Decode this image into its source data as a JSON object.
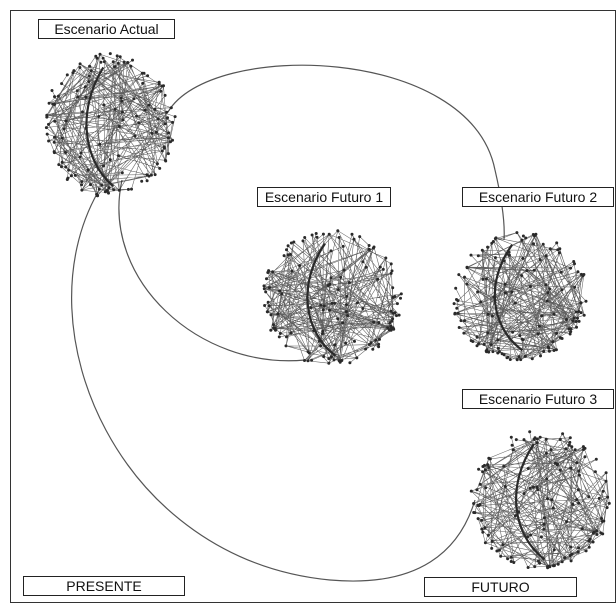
{
  "labels": {
    "current": "Escenario Actual",
    "future1": "Escenario Futuro 1",
    "future2": "Escenario Futuro 2",
    "future3": "Escenario Futuro 3",
    "present": "PRESENTE",
    "future": "FUTURO"
  },
  "colors": {
    "frame": "#333333",
    "curve": "#555555",
    "node": "#2a2a2a"
  },
  "icons": {
    "network": "network-graph-icon"
  }
}
